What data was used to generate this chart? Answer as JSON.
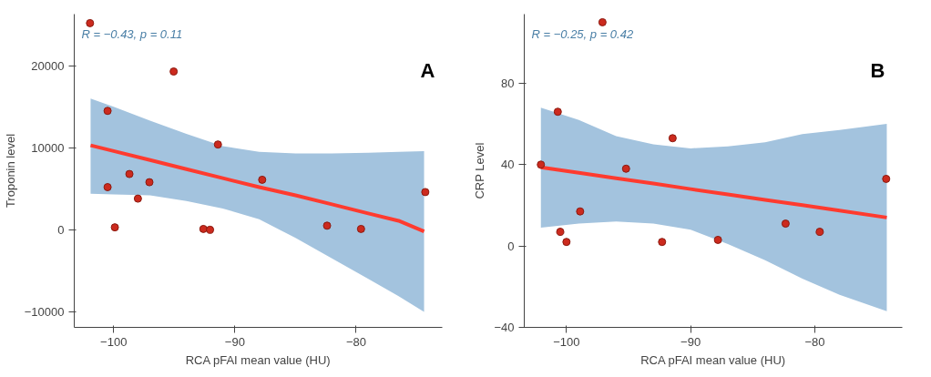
{
  "chart_data": [
    {
      "type": "scatter",
      "xlabel": "RCA pFAI mean value (HU)",
      "ylabel": "Troponin level",
      "annotations": [
        "R = −0.43, p = 0.11",
        "A"
      ],
      "xlim": [
        -103.25,
        -72.9
      ],
      "ylim": [
        -11900,
        26300
      ],
      "xticks": [
        -100,
        -90,
        -80
      ],
      "yticks": [
        -10000,
        0,
        10000,
        20000
      ],
      "grid": false,
      "series": [
        {
          "marker": "circle",
          "color": "#cc2a1e",
          "x": [
            -101.95,
            -95.05,
            -100.5,
            -91.4,
            -98.7,
            -97.05,
            -100.5,
            -98.0,
            -87.75,
            -74.3,
            -99.9,
            -92.6,
            -92.05,
            -82.4,
            -79.6
          ],
          "values": [
            25200,
            19300,
            14500,
            10400,
            6800,
            5800,
            5200,
            3800,
            6100,
            4600,
            300,
            100,
            0,
            500,
            100
          ]
        },
        {
          "type": "line",
          "marker": "none",
          "color": "#ff3b2f",
          "x": [
            -101.9,
            -100,
            -97,
            -94,
            -91,
            -88,
            -85,
            -82,
            -79,
            -76.5,
            -74.4
          ],
          "values": [
            10300,
            9600,
            8500,
            7400,
            6300,
            5200,
            4200,
            3100,
            2000,
            1100,
            -200
          ],
          "lower": [
            4400,
            4300,
            4200,
            3500,
            2600,
            1300,
            -1000,
            -3500,
            -6000,
            -8100,
            -10000
          ],
          "upper": [
            16000,
            15000,
            13300,
            11700,
            10200,
            9500,
            9300,
            9300,
            9400,
            9500,
            9600
          ]
        }
      ]
    },
    {
      "type": "scatter",
      "xlabel": "RCA pFAI mean value (HU)",
      "ylabel": "CRP Level",
      "annotations": [
        "R = −0.25, p = 0.42",
        "B"
      ],
      "xlim": [
        -103.4,
        -72.95
      ],
      "ylim": [
        -40,
        114
      ],
      "xticks": [
        -100,
        -90,
        -80
      ],
      "yticks": [
        -40,
        0,
        40,
        80
      ],
      "grid": false,
      "series": [
        {
          "marker": "circle",
          "color": "#cc2a1e",
          "x": [
            -97.1,
            -100.7,
            -102.06,
            -95.2,
            -91.45,
            -98.9,
            -100.5,
            -100,
            -92.3,
            -87.8,
            -82.35,
            -79.6,
            -74.25
          ],
          "values": [
            110,
            66,
            40,
            38,
            53,
            17,
            7,
            2,
            2,
            3,
            11,
            7,
            33
          ]
        },
        {
          "type": "line",
          "marker": "none",
          "color": "#ff3b2f",
          "x": [
            -102.06,
            -99,
            -96,
            -93,
            -90,
            -87,
            -84,
            -81,
            -78,
            -74.2
          ],
          "values": [
            38.7,
            36.0,
            33.3,
            30.7,
            28.0,
            25.4,
            22.7,
            20.1,
            17.4,
            14.0
          ],
          "lower": [
            9,
            11,
            12,
            11,
            8,
            1,
            -7,
            -16,
            -24,
            -32
          ],
          "upper": [
            68,
            62,
            54,
            50,
            48,
            49,
            51,
            55,
            57,
            60
          ]
        }
      ]
    }
  ]
}
